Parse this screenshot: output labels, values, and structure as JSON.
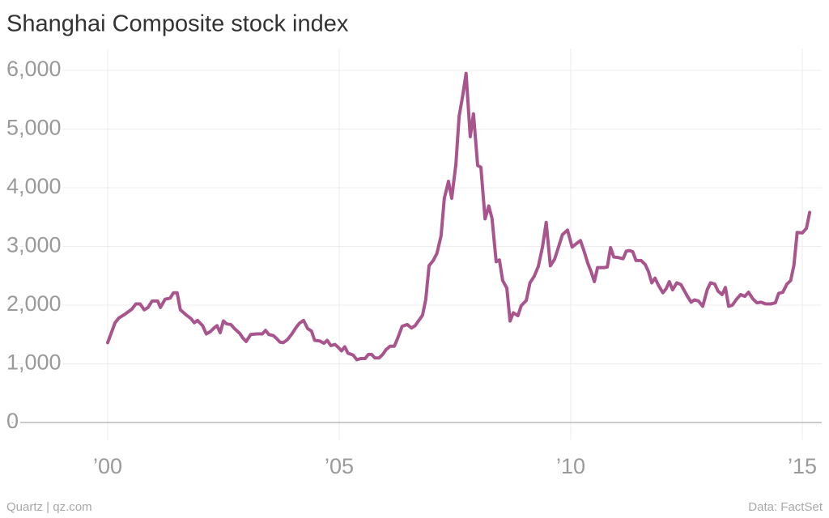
{
  "chart_data": {
    "type": "line",
    "title": "Shanghai Composite stock index",
    "source_left": "Quartz | qz.com",
    "source_right": "Data: FactSet",
    "color": "#a8558d",
    "grid": true,
    "xlim": [
      1997.85,
      2015.42
    ],
    "xticks": [
      {
        "value": 2000,
        "label": "’00"
      },
      {
        "value": 2005,
        "label": "’05"
      },
      {
        "value": 2010,
        "label": "’10"
      },
      {
        "value": 2015,
        "label": "’15"
      }
    ],
    "ylim": [
      -300,
      6200
    ],
    "yticks": [
      0,
      {
        "value": 1000,
        "label": "1,000"
      },
      {
        "value": 2000,
        "label": "2,000"
      },
      {
        "value": 3000,
        "label": "3,000"
      },
      {
        "value": 4000,
        "label": "4,000"
      },
      {
        "value": 5000,
        "label": "5,000"
      },
      {
        "value": 6000,
        "label": "6,000"
      }
    ],
    "x": [
      2000,
      2000.16,
      2000.24,
      2000.38,
      2000.52,
      2000.61,
      2000.7,
      2000.79,
      2000.87,
      2000.96,
      2001.08,
      2001.14,
      2001.24,
      2001.35,
      2001.42,
      2001.5,
      2001.57,
      2001.7,
      2001.8,
      2001.87,
      2001.94,
      2002.05,
      2002.13,
      2002.22,
      2002.31,
      2002.36,
      2002.43,
      2002.5,
      2002.57,
      2002.66,
      2002.74,
      2002.85,
      2002.92,
      2002.99,
      2003.09,
      2003.23,
      2003.34,
      2003.41,
      2003.48,
      2003.58,
      2003.65,
      2003.72,
      2003.79,
      2003.88,
      2003.97,
      2004.07,
      2004.14,
      2004.23,
      2004.32,
      2004.4,
      2004.47,
      2004.58,
      2004.67,
      2004.74,
      2004.82,
      2004.91,
      2004.98,
      2005.05,
      2005.12,
      2005.19,
      2005.3,
      2005.38,
      2005.47,
      2005.56,
      2005.63,
      2005.7,
      2005.77,
      2005.86,
      2005.94,
      2006.01,
      2006.1,
      2006.19,
      2006.26,
      2006.36,
      2006.47,
      2006.56,
      2006.64,
      2006.73,
      2006.8,
      2006.87,
      2006.94,
      2007.03,
      2007.11,
      2007.2,
      2007.27,
      2007.36,
      2007.43,
      2007.52,
      2007.59,
      2007.67,
      2007.74,
      2007.83,
      2007.9,
      2007.99,
      2008.06,
      2008.15,
      2008.23,
      2008.3,
      2008.39,
      2008.46,
      2008.53,
      2008.62,
      2008.69,
      2008.76,
      2008.86,
      2008.93,
      2009.04,
      2009.12,
      2009.21,
      2009.3,
      2009.39,
      2009.47,
      2009.56,
      2009.65,
      2009.74,
      2009.82,
      2009.93,
      2010.03,
      2010.14,
      2010.21,
      2010.28,
      2010.37,
      2010.44,
      2010.51,
      2010.58,
      2010.65,
      2010.72,
      2010.79,
      2010.86,
      2010.93,
      2011.03,
      2011.13,
      2011.2,
      2011.27,
      2011.34,
      2011.41,
      2011.52,
      2011.61,
      2011.68,
      2011.75,
      2011.82,
      2011.9,
      2011.99,
      2012.06,
      2012.13,
      2012.2,
      2012.29,
      2012.38,
      2012.45,
      2012.52,
      2012.6,
      2012.67,
      2012.76,
      2012.85,
      2012.95,
      2013.02,
      2013.11,
      2013.18,
      2013.27,
      2013.34,
      2013.41,
      2013.49,
      2013.58,
      2013.67,
      2013.76,
      2013.84,
      2013.93,
      2014.02,
      2014.11,
      2014.21,
      2014.32,
      2014.42,
      2014.49,
      2014.58,
      2014.67,
      2014.75,
      2014.82,
      2014.89,
      2015.0,
      2015.09,
      2015.16
    ],
    "values": [
      1360,
      1700,
      1780,
      1850,
      1930,
      2020,
      2020,
      1920,
      1960,
      2070,
      2070,
      1960,
      2100,
      2120,
      2210,
      2210,
      1920,
      1830,
      1770,
      1700,
      1740,
      1650,
      1510,
      1550,
      1620,
      1650,
      1530,
      1730,
      1680,
      1670,
      1600,
      1520,
      1440,
      1380,
      1500,
      1510,
      1510,
      1570,
      1500,
      1480,
      1430,
      1370,
      1360,
      1410,
      1500,
      1620,
      1690,
      1740,
      1600,
      1560,
      1400,
      1390,
      1350,
      1400,
      1310,
      1330,
      1280,
      1220,
      1290,
      1180,
      1150,
      1070,
      1090,
      1090,
      1160,
      1160,
      1100,
      1100,
      1160,
      1240,
      1300,
      1300,
      1430,
      1640,
      1670,
      1610,
      1650,
      1750,
      1830,
      2100,
      2670,
      2760,
      2880,
      3180,
      3820,
      4110,
      3820,
      4400,
      5220,
      5580,
      5950,
      4870,
      5260,
      4380,
      4350,
      3470,
      3690,
      3480,
      2740,
      2770,
      2420,
      2290,
      1730,
      1870,
      1820,
      1990,
      2080,
      2380,
      2490,
      2660,
      2990,
      3410,
      2670,
      2780,
      3000,
      3200,
      3280,
      2990,
      3060,
      3100,
      2940,
      2710,
      2570,
      2400,
      2640,
      2640,
      2640,
      2650,
      2980,
      2820,
      2810,
      2790,
      2920,
      2930,
      2910,
      2760,
      2760,
      2690,
      2570,
      2380,
      2460,
      2330,
      2210,
      2280,
      2400,
      2260,
      2380,
      2350,
      2250,
      2150,
      2050,
      2090,
      2070,
      1980,
      2270,
      2380,
      2360,
      2240,
      2180,
      2300,
      1980,
      2000,
      2100,
      2180,
      2150,
      2220,
      2110,
      2040,
      2050,
      2020,
      2020,
      2040,
      2200,
      2220,
      2360,
      2420,
      2680,
      3240,
      3230,
      3310,
      3580
    ]
  }
}
